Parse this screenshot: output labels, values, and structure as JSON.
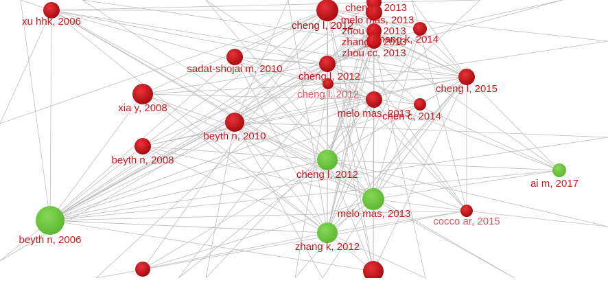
{
  "nodes": [
    {
      "label": "xu hhk, 2006"
    },
    {
      "label": "cheng l, 2013"
    },
    {
      "label": "melo mas, 2013"
    },
    {
      "label": "cheng l, 2012"
    },
    {
      "label": "zhou cc, 2013"
    },
    {
      "label": "zhang k, 2013"
    },
    {
      "label": "zhou cc, 2013"
    },
    {
      "label": "zhang k, 2014"
    },
    {
      "label": "sadat-shojai m, 2010"
    },
    {
      "label": "cheng l, 2012"
    },
    {
      "label": "cheng l, 2012"
    },
    {
      "label": "cheng l, 2015"
    },
    {
      "label": "xia y, 2008"
    },
    {
      "label": "melo mas, 2013"
    },
    {
      "label": "chen c, 2014"
    },
    {
      "label": "beyth n, 2010"
    },
    {
      "label": "beyth n, 2008"
    },
    {
      "label": "cheng l, 2012"
    },
    {
      "label": "ai m, 2017"
    },
    {
      "label": "melo mas, 2013"
    },
    {
      "label": "cocco ar, 2015"
    },
    {
      "label": "beyth n, 2006"
    },
    {
      "label": "zhang k, 2012"
    }
  ]
}
